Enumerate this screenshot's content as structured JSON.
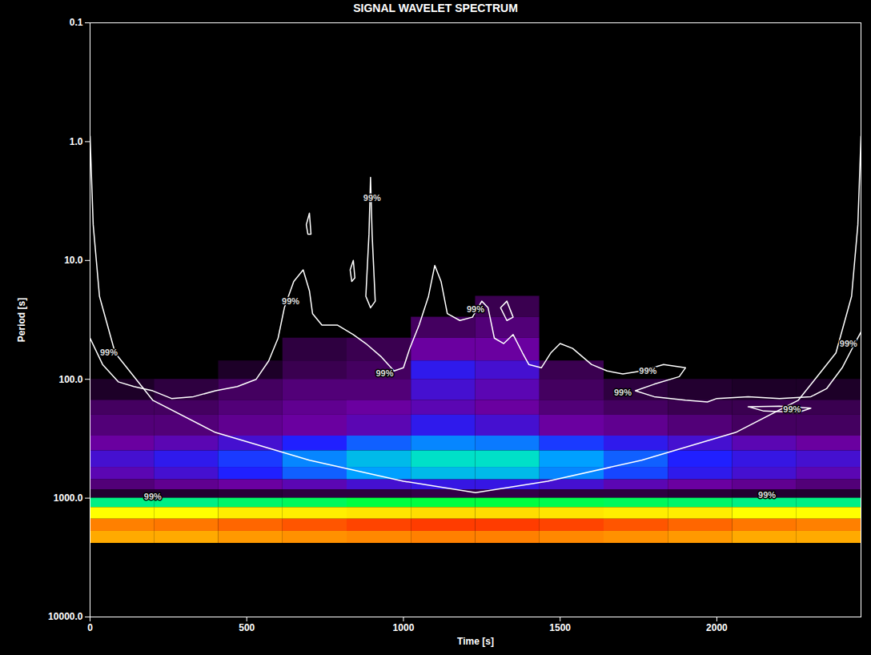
{
  "chart_data": {
    "type": "heatmap",
    "title": "SIGNAL WAVELET SPECTRUM",
    "x_label": "Time [s]",
    "y_label": "Period [s]",
    "log": "y",
    "xlim": [
      0,
      2460
    ],
    "xticks": [
      0,
      500,
      1000,
      1500,
      2000
    ],
    "ylim": [
      0.1,
      10000
    ],
    "yticks": [
      {
        "value": 0.1,
        "label": "0.1"
      },
      {
        "value": 1,
        "label": "1.0"
      },
      {
        "value": 10,
        "label": "10.0"
      },
      {
        "value": 100,
        "label": "100.0"
      },
      {
        "value": 1000,
        "label": "1000.0"
      },
      {
        "value": 10000,
        "label": "10000.0"
      }
    ],
    "zlim": [
      0,
      1
    ],
    "x_edges": [
      0,
      205,
      410,
      615,
      820,
      1025,
      1230,
      1435,
      1640,
      1845,
      2050,
      2255,
      2460
    ],
    "period_edges": [
      20,
      30,
      45,
      70,
      100,
      150,
      200,
      300,
      400,
      550,
      700,
      850,
      1000,
      1200,
      1500,
      1900,
      2400
    ],
    "power": [
      [
        0,
        0,
        0,
        0,
        0,
        0,
        0.1,
        0,
        0,
        0,
        0,
        0
      ],
      [
        0,
        0,
        0,
        0,
        0,
        0.12,
        0.15,
        0,
        0,
        0,
        0,
        0
      ],
      [
        0,
        0,
        0,
        0.08,
        0.1,
        0.2,
        0.2,
        0,
        0,
        0,
        0,
        0
      ],
      [
        0,
        0,
        0.05,
        0.1,
        0.12,
        0.28,
        0.25,
        0.1,
        0,
        0,
        0,
        0
      ],
      [
        0.05,
        0.08,
        0.12,
        0.15,
        0.15,
        0.25,
        0.22,
        0.12,
        0.08,
        0.06,
        0.05,
        0.05
      ],
      [
        0.12,
        0.12,
        0.15,
        0.18,
        0.2,
        0.22,
        0.2,
        0.15,
        0.12,
        0.1,
        0.1,
        0.1
      ],
      [
        0.15,
        0.15,
        0.18,
        0.2,
        0.22,
        0.28,
        0.25,
        0.2,
        0.18,
        0.15,
        0.12,
        0.12
      ],
      [
        0.2,
        0.22,
        0.25,
        0.3,
        0.35,
        0.38,
        0.37,
        0.32,
        0.28,
        0.25,
        0.22,
        0.2
      ],
      [
        0.25,
        0.28,
        0.32,
        0.38,
        0.42,
        0.45,
        0.45,
        0.4,
        0.35,
        0.3,
        0.27,
        0.25
      ],
      [
        0.22,
        0.25,
        0.3,
        0.35,
        0.4,
        0.42,
        0.42,
        0.38,
        0.33,
        0.28,
        0.25,
        0.22
      ],
      [
        0.15,
        0.18,
        0.2,
        0.22,
        0.25,
        0.27,
        0.27,
        0.25,
        0.22,
        0.2,
        0.18,
        0.15
      ],
      [
        0.06,
        0.06,
        0.07,
        0.08,
        0.08,
        0.09,
        0.09,
        0.08,
        0.08,
        0.07,
        0.06,
        0.06
      ],
      [
        0.5,
        0.5,
        0.52,
        0.53,
        0.55,
        0.55,
        0.55,
        0.54,
        0.53,
        0.52,
        0.5,
        0.5
      ],
      [
        0.7,
        0.7,
        0.72,
        0.72,
        0.73,
        0.74,
        0.74,
        0.73,
        0.72,
        0.72,
        0.7,
        0.7
      ],
      [
        0.85,
        0.86,
        0.88,
        0.9,
        0.92,
        0.93,
        0.93,
        0.92,
        0.9,
        0.88,
        0.86,
        0.85
      ],
      [
        0.8,
        0.8,
        0.82,
        0.83,
        0.84,
        0.85,
        0.85,
        0.84,
        0.83,
        0.82,
        0.8,
        0.8
      ]
    ],
    "cone_of_influence": [
      [
        0,
        0.9
      ],
      [
        10,
        5
      ],
      [
        30,
        20
      ],
      [
        80,
        60
      ],
      [
        200,
        150
      ],
      [
        400,
        280
      ],
      [
        700,
        480
      ],
      [
        1000,
        720
      ],
      [
        1230,
        900
      ],
      [
        1460,
        720
      ],
      [
        1760,
        480
      ],
      [
        2060,
        280
      ],
      [
        2260,
        150
      ],
      [
        2380,
        60
      ],
      [
        2430,
        20
      ],
      [
        2450,
        5
      ],
      [
        2460,
        0.9
      ]
    ],
    "contours": [
      {
        "label": "99%",
        "points": [
          [
            0,
            45
          ],
          [
            40,
            75
          ],
          [
            90,
            105
          ],
          [
            140,
            115
          ],
          [
            200,
            125
          ],
          [
            260,
            145
          ],
          [
            330,
            140
          ],
          [
            400,
            125
          ],
          [
            470,
            115
          ],
          [
            530,
            100
          ],
          [
            570,
            70
          ],
          [
            600,
            45
          ],
          [
            620,
            25
          ],
          [
            650,
            15
          ],
          [
            680,
            12
          ],
          [
            700,
            18
          ],
          [
            710,
            28
          ],
          [
            740,
            35
          ],
          [
            790,
            35
          ],
          [
            840,
            42
          ],
          [
            880,
            50
          ],
          [
            930,
            65
          ],
          [
            970,
            85
          ],
          [
            1000,
            80
          ],
          [
            1020,
            55
          ],
          [
            1050,
            35
          ],
          [
            1080,
            20
          ],
          [
            1100,
            11
          ],
          [
            1120,
            15
          ],
          [
            1140,
            28
          ],
          [
            1180,
            32
          ],
          [
            1220,
            30
          ],
          [
            1250,
            22
          ],
          [
            1270,
            25
          ],
          [
            1290,
            45
          ],
          [
            1320,
            50
          ],
          [
            1350,
            42
          ],
          [
            1380,
            60
          ],
          [
            1400,
            75
          ],
          [
            1440,
            80
          ],
          [
            1470,
            60
          ],
          [
            1500,
            50
          ],
          [
            1540,
            55
          ],
          [
            1600,
            75
          ],
          [
            1650,
            85
          ],
          [
            1700,
            90
          ],
          [
            1760,
            85
          ],
          [
            1830,
            75
          ],
          [
            1900,
            80
          ],
          [
            1880,
            95
          ],
          [
            1800,
            110
          ],
          [
            1740,
            125
          ],
          [
            1800,
            140
          ],
          [
            1900,
            150
          ],
          [
            1970,
            155
          ],
          [
            2000,
            145
          ],
          [
            2100,
            140
          ],
          [
            2200,
            145
          ],
          [
            2300,
            140
          ],
          [
            2350,
            120
          ],
          [
            2400,
            80
          ],
          [
            2440,
            50
          ],
          [
            2460,
            40
          ]
        ]
      },
      {
        "label": "99%",
        "points": [
          [
            880,
            20
          ],
          [
            890,
            6
          ],
          [
            895,
            2
          ],
          [
            900,
            6
          ],
          [
            910,
            22
          ],
          [
            895,
            25
          ],
          [
            880,
            20
          ]
        ]
      },
      {
        "label": "99%",
        "points": [
          [
            690,
            5
          ],
          [
            700,
            4
          ],
          [
            705,
            6
          ],
          [
            695,
            6
          ],
          [
            690,
            5
          ]
        ]
      },
      {
        "label": "99%",
        "points": [
          [
            830,
            12
          ],
          [
            840,
            10
          ],
          [
            845,
            14
          ],
          [
            835,
            15
          ],
          [
            830,
            12
          ]
        ]
      },
      {
        "label": "99%",
        "points": [
          [
            1310,
            25
          ],
          [
            1330,
            22
          ],
          [
            1350,
            30
          ],
          [
            1330,
            32
          ],
          [
            1310,
            25
          ]
        ]
      },
      {
        "label": "99%",
        "points": [
          [
            2100,
            170
          ],
          [
            2200,
            168
          ],
          [
            2300,
            175
          ],
          [
            2260,
            190
          ],
          [
            2150,
            185
          ],
          [
            2100,
            170
          ]
        ]
      }
    ],
    "annotations": [
      {
        "x": 640,
        "y": 22,
        "text": "99%"
      },
      {
        "x": 1230,
        "y": 26,
        "text": "99%"
      },
      {
        "x": 900,
        "y": 3,
        "text": "99%"
      },
      {
        "x": 60,
        "y": 60,
        "text": "99%"
      },
      {
        "x": 940,
        "y": 90,
        "text": "99%"
      },
      {
        "x": 1780,
        "y": 85,
        "text": "99%"
      },
      {
        "x": 1700,
        "y": 130,
        "text": "99%"
      },
      {
        "x": 2240,
        "y": 180,
        "text": "99%"
      },
      {
        "x": 2420,
        "y": 50,
        "text": "99%"
      },
      {
        "x": 200,
        "y": 980,
        "text": "99%"
      },
      {
        "x": 2160,
        "y": 950,
        "text": "99%"
      }
    ]
  }
}
